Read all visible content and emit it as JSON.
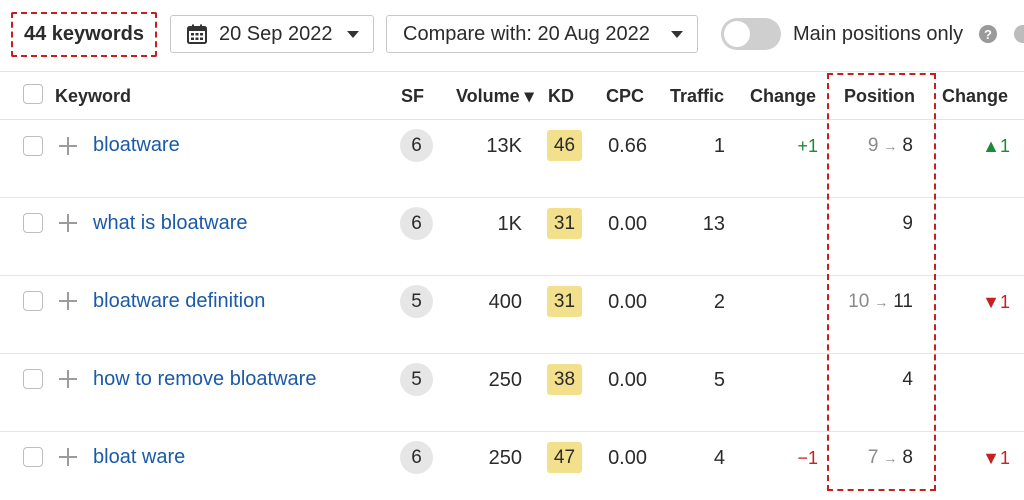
{
  "toolbar": {
    "keyword_count": "44 keywords",
    "date_label": "20 Sep 2022",
    "compare_label": "Compare with: 20 Aug 2022",
    "main_positions_label": "Main positions only",
    "main_positions_enabled": false,
    "help_glyph": "?"
  },
  "table": {
    "headers": {
      "keyword": "Keyword",
      "sf": "SF",
      "volume": "Volume ▾",
      "kd": "KD",
      "cpc": "CPC",
      "traffic": "Traffic",
      "change": "Change",
      "position": "Position",
      "position_change": "Change"
    },
    "rows": [
      {
        "keyword": "bloatware",
        "sf": "6",
        "volume": "13K",
        "kd": "46",
        "cpc": "0.66",
        "traffic": "1",
        "traffic_change": "+1",
        "traffic_change_dir": "up",
        "position_old": "9",
        "position_new": "8",
        "position_change": "▲1",
        "position_change_dir": "up"
      },
      {
        "keyword": "what is bloatware",
        "sf": "6",
        "volume": "1K",
        "kd": "31",
        "cpc": "0.00",
        "traffic": "13",
        "traffic_change": "",
        "traffic_change_dir": "none",
        "position_old": "",
        "position_new": "9",
        "position_change": "",
        "position_change_dir": "none"
      },
      {
        "keyword": "bloatware definition",
        "sf": "5",
        "volume": "400",
        "kd": "31",
        "cpc": "0.00",
        "traffic": "2",
        "traffic_change": "",
        "traffic_change_dir": "none",
        "position_old": "10",
        "position_new": "11",
        "position_change": "▼1",
        "position_change_dir": "down"
      },
      {
        "keyword": "how to remove bloatware",
        "sf": "5",
        "volume": "250",
        "kd": "38",
        "cpc": "0.00",
        "traffic": "5",
        "traffic_change": "",
        "traffic_change_dir": "none",
        "position_old": "",
        "position_new": "4",
        "position_change": "",
        "position_change_dir": "none"
      },
      {
        "keyword": "bloat ware",
        "sf": "6",
        "volume": "250",
        "kd": "47",
        "cpc": "0.00",
        "traffic": "4",
        "traffic_change": "−1",
        "traffic_change_dir": "down",
        "position_old": "7",
        "position_new": "8",
        "position_change": "▼1",
        "position_change_dir": "down"
      }
    ]
  },
  "colors": {
    "link": "#1a5aa8",
    "kd_badge": "#f3e08c",
    "positive": "#1c8a3a",
    "negative": "#c72020",
    "highlight_border": "#c42020"
  },
  "icons": {
    "date": "calendar-icon",
    "dropdown": "chevron-down-icon",
    "help": "help-icon",
    "add": "plus-icon"
  }
}
